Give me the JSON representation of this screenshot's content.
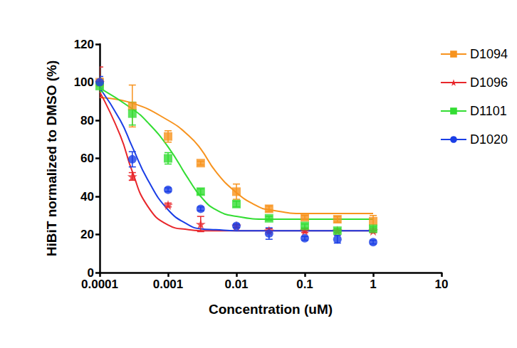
{
  "chart_data": {
    "type": "scatter",
    "x_label": "Concentration (uM)",
    "y_label": "HiBiT normalized to DMSO (%)",
    "log": "x",
    "grid": false,
    "legend": "right",
    "xlim": [
      0.0001,
      10
    ],
    "xticks": [
      0.0001,
      0.001,
      0.01,
      0.1,
      1,
      10
    ],
    "ylim": [
      0,
      120
    ],
    "yticks": [
      0,
      20,
      40,
      60,
      80,
      100,
      120
    ],
    "x": [
      0.0001,
      0.0003,
      0.001,
      0.003,
      0.01,
      0.03,
      0.1,
      0.3,
      1
    ],
    "series": [
      {
        "name": "D1094",
        "color": "#f7931e",
        "marker": "square",
        "values": [
          100,
          87.5,
          71.5,
          57.5,
          42.5,
          33.5,
          29,
          28,
          27
        ],
        "errors": [
          2,
          11,
          3,
          1,
          4,
          1.5,
          1,
          1.5,
          3
        ],
        "fit": {
          "x": [
            0.0001,
            0.0003,
            0.001,
            0.002,
            0.003,
            0.005,
            0.01,
            0.02,
            0.03,
            0.1,
            1
          ],
          "values": [
            92,
            89,
            80,
            72,
            65,
            53,
            42,
            35,
            33,
            31,
            31
          ]
        }
      },
      {
        "name": "D1096",
        "color": "#e8262b",
        "marker": "star",
        "values": [
          100,
          50.5,
          35.5,
          25.5,
          24.5,
          22,
          22,
          22,
          22
        ],
        "errors": [
          8,
          2,
          1,
          4,
          1,
          1,
          1,
          1,
          1
        ],
        "fit": {
          "x": [
            0.0001,
            0.0002,
            0.0003,
            0.0005,
            0.001,
            0.002,
            0.003,
            0.01,
            1
          ],
          "values": [
            95,
            72,
            53,
            35,
            25,
            22.5,
            22,
            22,
            22
          ]
        }
      },
      {
        "name": "D1101",
        "color": "#33dd33",
        "marker": "square",
        "values": [
          98,
          83.5,
          60,
          42.5,
          36,
          28.5,
          24.5,
          22,
          23
        ],
        "errors": [
          3,
          6,
          3,
          1.5,
          1.5,
          1,
          1,
          1,
          1
        ],
        "fit": {
          "x": [
            0.0001,
            0.0003,
            0.0005,
            0.001,
            0.002,
            0.003,
            0.005,
            0.01,
            0.03,
            0.1,
            1
          ],
          "values": [
            97,
            86,
            79,
            66,
            49,
            40,
            33,
            29.5,
            28,
            28,
            28
          ]
        }
      },
      {
        "name": "D1020",
        "color": "#1a3ee6",
        "marker": "circle",
        "values": [
          100,
          59.5,
          43.5,
          33.5,
          24.5,
          20.5,
          18,
          17.5,
          16
        ],
        "errors": [
          3,
          4,
          1,
          1,
          1,
          3,
          1,
          2,
          1
        ],
        "fit": {
          "x": [
            0.0001,
            0.0002,
            0.0003,
            0.0005,
            0.001,
            0.002,
            0.003,
            0.005,
            0.01,
            1
          ],
          "values": [
            97,
            80,
            66,
            49,
            33,
            25,
            23,
            22.5,
            22,
            22
          ]
        }
      }
    ]
  }
}
